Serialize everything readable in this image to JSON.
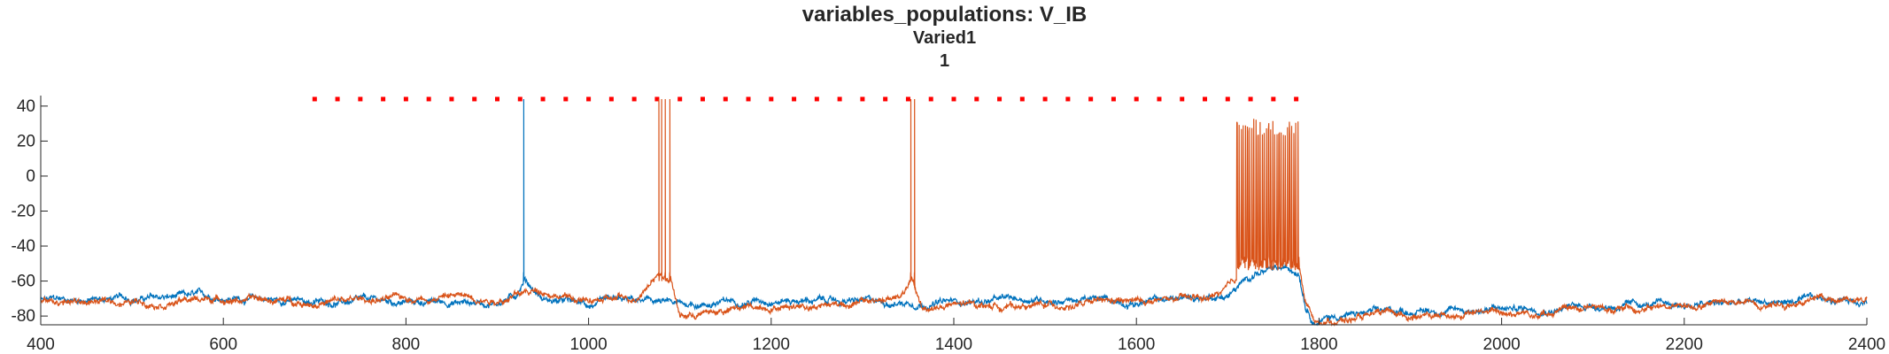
{
  "chart_data": {
    "type": "line",
    "title": "variables_populations: V_IB",
    "subtitle": "Varied1",
    "subtitle2": "1",
    "xlabel": "",
    "ylabel": "",
    "xlim": [
      400,
      2400
    ],
    "ylim": [
      -85,
      46
    ],
    "xticks": [
      400,
      600,
      800,
      1000,
      1200,
      1400,
      1600,
      1800,
      2000,
      2200,
      2400
    ],
    "yticks": [
      40,
      20,
      0,
      -20,
      -40,
      -60,
      -80
    ],
    "grid": false,
    "legend": "none",
    "series": [
      {
        "color": "#0072BD",
        "baseline": [
          [
            400,
            -71
          ],
          [
            500,
            -70
          ],
          [
            600,
            -69
          ],
          [
            700,
            -72
          ],
          [
            800,
            -72
          ],
          [
            900,
            -72
          ],
          [
            920,
            -68
          ],
          [
            930,
            -58
          ],
          [
            950,
            -70
          ],
          [
            1000,
            -74
          ],
          [
            1050,
            -72
          ],
          [
            1075,
            -72
          ],
          [
            1100,
            -74
          ],
          [
            1150,
            -72
          ],
          [
            1200,
            -70
          ],
          [
            1300,
            -72
          ],
          [
            1400,
            -72
          ],
          [
            1500,
            -70
          ],
          [
            1600,
            -72
          ],
          [
            1700,
            -68
          ],
          [
            1720,
            -60
          ],
          [
            1730,
            -55
          ],
          [
            1760,
            -54
          ],
          [
            1778,
            -54
          ],
          [
            1785,
            -72
          ],
          [
            1795,
            -82
          ],
          [
            1810,
            -80
          ],
          [
            1900,
            -77
          ],
          [
            2000,
            -76
          ],
          [
            2100,
            -74
          ],
          [
            2200,
            -74
          ],
          [
            2300,
            -72
          ],
          [
            2400,
            -70
          ]
        ],
        "spikes": [
          929
        ]
      },
      {
        "color": "#D95319",
        "baseline": [
          [
            400,
            -72
          ],
          [
            500,
            -72
          ],
          [
            600,
            -70
          ],
          [
            700,
            -72
          ],
          [
            800,
            -70
          ],
          [
            850,
            -68
          ],
          [
            900,
            -70
          ],
          [
            950,
            -65
          ],
          [
            1000,
            -72
          ],
          [
            1050,
            -70
          ],
          [
            1075,
            -55
          ],
          [
            1090,
            -58
          ],
          [
            1100,
            -80
          ],
          [
            1150,
            -77
          ],
          [
            1200,
            -74
          ],
          [
            1300,
            -72
          ],
          [
            1340,
            -70
          ],
          [
            1354,
            -60
          ],
          [
            1365,
            -76
          ],
          [
            1400,
            -74
          ],
          [
            1500,
            -74
          ],
          [
            1600,
            -72
          ],
          [
            1680,
            -70
          ],
          [
            1710,
            -62
          ],
          [
            1720,
            -55
          ],
          [
            1740,
            -52
          ],
          [
            1778,
            -52
          ],
          [
            1785,
            -72
          ],
          [
            1795,
            -84
          ],
          [
            1810,
            -82
          ],
          [
            1900,
            -80
          ],
          [
            2000,
            -78
          ],
          [
            2100,
            -76
          ],
          [
            2200,
            -74
          ],
          [
            2300,
            -72
          ],
          [
            2400,
            -68
          ]
        ],
        "spikes": [
          1077,
          1080,
          1084,
          1089,
          1353,
          1357
        ],
        "burst": {
          "start": 1710,
          "end": 1778,
          "period": 2.3,
          "peak": 33,
          "trough": -50
        }
      }
    ],
    "raster": {
      "color": "#FF0000",
      "y": 44,
      "x": [
        700,
        725,
        750,
        775,
        800,
        825,
        850,
        875,
        900,
        925,
        950,
        975,
        1000,
        1025,
        1050,
        1075,
        1100,
        1125,
        1150,
        1175,
        1200,
        1225,
        1250,
        1275,
        1300,
        1325,
        1350,
        1375,
        1400,
        1425,
        1450,
        1475,
        1500,
        1525,
        1550,
        1575,
        1600,
        1625,
        1650,
        1675,
        1700,
        1725,
        1750,
        1775
      ]
    }
  }
}
